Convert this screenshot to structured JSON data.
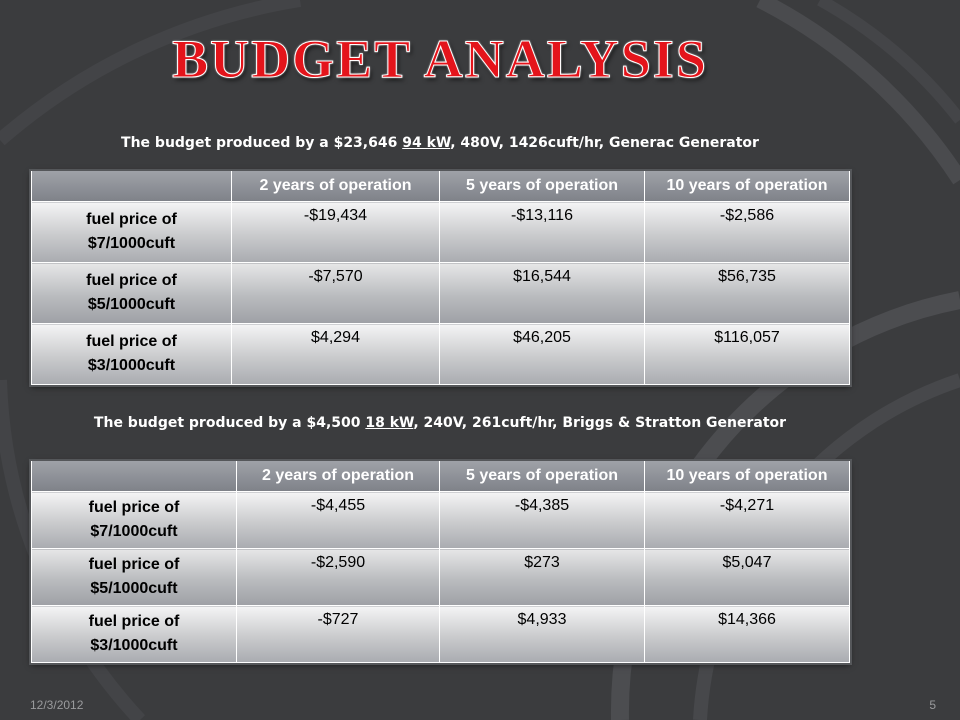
{
  "title": "BUDGET ANALYSIS",
  "colors": {
    "title": "#e4141b",
    "background": "#3b3c3e"
  },
  "table1": {
    "caption_pre": "The budget produced by a $23,646 ",
    "caption_underlined": "94 kW",
    "caption_post": ", 480V, 1426cuft/hr, Generac Generator",
    "headers": [
      "",
      "2 years of operation",
      "5 years of operation",
      "10 years of operation"
    ],
    "rows": [
      {
        "label_line1": "fuel price of",
        "label_line2": "$7/1000cuft",
        "values": [
          "-$19,434",
          "-$13,116",
          "-$2,586"
        ]
      },
      {
        "label_line1": "fuel price of",
        "label_line2": "$5/1000cuft",
        "values": [
          "-$7,570",
          "$16,544",
          "$56,735"
        ]
      },
      {
        "label_line1": "fuel price of",
        "label_line2": "$3/1000cuft",
        "values": [
          "$4,294",
          "$46,205",
          "$116,057"
        ]
      }
    ]
  },
  "table2": {
    "caption_pre": "The budget produced by a $4,500 ",
    "caption_underlined": "18 kW",
    "caption_post": ", 240V, 261cuft/hr, Briggs & Stratton Generator",
    "headers": [
      "",
      "2 years of operation",
      "5 years of operation",
      "10 years of operation"
    ],
    "rows": [
      {
        "label_line1": "fuel price of",
        "label_line2": "$7/1000cuft",
        "values": [
          "-$4,455",
          "-$4,385",
          "-$4,271"
        ]
      },
      {
        "label_line1": "fuel price of",
        "label_line2": "$5/1000cuft",
        "values": [
          "-$2,590",
          "$273",
          "$5,047"
        ]
      },
      {
        "label_line1": "fuel price of",
        "label_line2": "$3/1000cuft",
        "values": [
          "-$727",
          "$4,933",
          "$14,366"
        ]
      }
    ]
  },
  "footer": {
    "date": "12/3/2012",
    "page": "5"
  }
}
